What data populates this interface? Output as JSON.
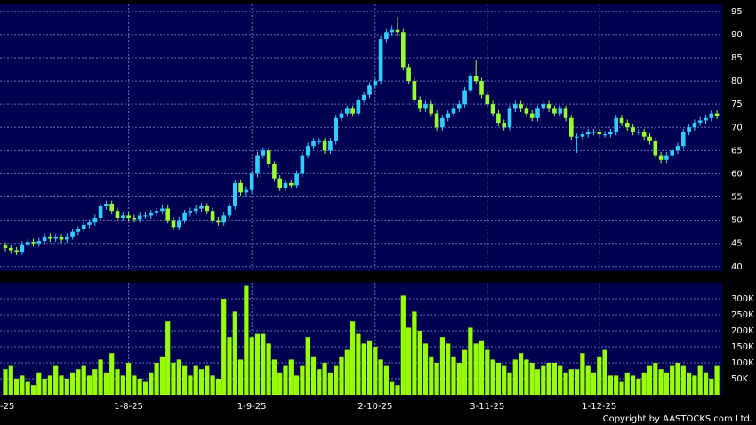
{
  "chart_data": [
    {
      "type": "candlestick",
      "open": [
        44.5,
        44,
        43.5,
        43.2,
        44.8,
        45.3,
        45,
        45.5,
        46.5,
        46,
        46.3,
        45.8,
        46.5,
        47.5,
        48,
        49,
        49.5,
        50.5,
        53,
        53.5,
        52,
        50.5,
        51,
        50.5,
        50.2,
        51,
        51,
        51.5,
        52,
        52.5,
        50,
        48.5,
        50,
        51.5,
        52,
        52.5,
        53,
        52,
        50,
        49.5,
        51,
        53,
        58,
        56,
        56.5,
        60,
        64,
        65,
        62,
        59,
        57,
        58,
        57.5,
        60,
        64,
        66,
        67,
        67,
        65,
        67,
        72,
        73,
        74,
        73,
        76,
        77,
        79,
        80,
        89,
        90.5,
        91,
        90.5,
        83,
        80,
        76,
        74,
        75,
        73,
        70,
        72,
        73,
        74,
        75,
        78,
        81,
        80,
        77,
        75,
        73,
        71,
        70,
        74,
        75,
        74,
        73,
        72,
        74,
        75,
        74,
        73,
        74,
        72,
        68,
        68,
        68.5,
        69,
        69,
        68.5,
        68.5,
        69,
        72,
        71,
        70,
        69,
        69,
        68,
        67,
        64,
        63,
        64,
        65,
        66,
        69,
        70,
        71,
        71.5,
        72,
        73
      ],
      "high": [
        45.2,
        44.7,
        44.2,
        45.5,
        46,
        46,
        46.2,
        47.2,
        47.2,
        47,
        47,
        47.2,
        48.2,
        48.7,
        49.7,
        50.2,
        51.2,
        53.7,
        54.2,
        54.2,
        52.7,
        51.7,
        51.7,
        51.2,
        51.7,
        51.7,
        52.2,
        52.7,
        53.2,
        53.2,
        50.7,
        50.7,
        52.2,
        52.7,
        53.2,
        53.7,
        53.7,
        52.7,
        50.7,
        51.7,
        53.7,
        58.7,
        58.7,
        57.2,
        60.7,
        64.7,
        65.7,
        65.7,
        62.7,
        59.7,
        58.7,
        58.7,
        60.7,
        64.7,
        66.7,
        67.7,
        67.7,
        67.7,
        67.7,
        72.7,
        73.7,
        74.7,
        74.7,
        76.7,
        77.7,
        79.7,
        80.7,
        89.7,
        91.2,
        92,
        93.8,
        91.2,
        83.7,
        80.7,
        76.7,
        75.7,
        75.7,
        73.7,
        72.7,
        73.7,
        74.7,
        75.7,
        78.7,
        81.7,
        84.5,
        80.7,
        77.7,
        75.7,
        73.7,
        71.7,
        74.7,
        75.7,
        75.7,
        74.7,
        73.7,
        74.7,
        75.7,
        75.7,
        74.7,
        74.7,
        74.7,
        72.7,
        68.7,
        69.2,
        69.7,
        69.7,
        69.7,
        69.2,
        69.7,
        72.7,
        72.7,
        71.7,
        70.7,
        69.7,
        69.7,
        68.7,
        67.7,
        64.7,
        64.7,
        65.7,
        66.7,
        69.7,
        70.7,
        71.7,
        72.2,
        72.7,
        73.7,
        73.7
      ],
      "low": [
        43.3,
        42.8,
        42.5,
        42.5,
        44.1,
        44.3,
        44.3,
        44.8,
        45.3,
        45.3,
        45.1,
        45.1,
        45.8,
        46.8,
        47.3,
        48.3,
        48.8,
        49.8,
        52.3,
        51.3,
        49.8,
        49.8,
        49.8,
        49.5,
        49.5,
        50.3,
        50.3,
        50.8,
        51.3,
        49.3,
        47.8,
        47.8,
        49.3,
        50.8,
        51.3,
        51.8,
        51.3,
        49.3,
        48.8,
        48.8,
        50.3,
        52.3,
        55.3,
        55.3,
        55.8,
        59.3,
        63.3,
        61.3,
        58.3,
        56.3,
        56.3,
        56.8,
        56.8,
        59.3,
        63.3,
        65.3,
        66.3,
        64.3,
        64.3,
        66.3,
        71.3,
        72.3,
        72.3,
        72.3,
        75.3,
        76.3,
        78.3,
        79.3,
        88.3,
        89.8,
        89.8,
        82.3,
        79.3,
        75.3,
        73.3,
        73.3,
        72.3,
        69.3,
        69.3,
        71.3,
        72.3,
        73.3,
        74.3,
        77.3,
        79.3,
        76.3,
        74.3,
        72.3,
        70.3,
        69.3,
        69.3,
        73.3,
        73.3,
        72.3,
        71.3,
        71.3,
        73.3,
        73.3,
        72.3,
        72.3,
        71.3,
        67.3,
        64.5,
        67.3,
        67.8,
        68.3,
        67.8,
        67.8,
        67.8,
        68.3,
        70.3,
        69.3,
        68.3,
        68.3,
        67.3,
        66.3,
        63.3,
        62.3,
        62.3,
        63.3,
        64.3,
        65.3,
        68.3,
        69.3,
        70.3,
        70.8,
        71.3,
        71.8
      ],
      "close": [
        44,
        43.5,
        43.2,
        44.8,
        45.3,
        45,
        45.5,
        46.5,
        46,
        46.3,
        45.8,
        46.5,
        47.5,
        48,
        49,
        49.5,
        50.5,
        53,
        53.5,
        52,
        50.5,
        51,
        50.5,
        50.2,
        51,
        51,
        51.5,
        52,
        52.5,
        50,
        48.5,
        50,
        51.5,
        52,
        52.5,
        53,
        52,
        50,
        49.5,
        51,
        53,
        58,
        56,
        56.5,
        60,
        64,
        65,
        62,
        59,
        57,
        58,
        57.5,
        60,
        64,
        66,
        67,
        67,
        65,
        67,
        72,
        73,
        74,
        73,
        76,
        77,
        79,
        80,
        89,
        90.5,
        91,
        90.5,
        83,
        80,
        76,
        74,
        75,
        73,
        70,
        72,
        73,
        74,
        75,
        78,
        81,
        80,
        77,
        75,
        73,
        71,
        70,
        74,
        75,
        74,
        73,
        72,
        74,
        75,
        74,
        73,
        74,
        72,
        68,
        68,
        68.5,
        69,
        69,
        68.5,
        68.5,
        69,
        72,
        71,
        70,
        69,
        69,
        68,
        67,
        64,
        63,
        64,
        65,
        66,
        69,
        70,
        71,
        71.5,
        72,
        73,
        72.5
      ],
      "up_color": "#33ccff",
      "down_color": "#99ff33",
      "ylim": [
        39,
        96.5
      ],
      "yticks": [
        40,
        45,
        50,
        55,
        60,
        65,
        70,
        75,
        80,
        85,
        90,
        95
      ],
      "grid": true
    },
    {
      "type": "bar",
      "categories": [
        "-25",
        null,
        null,
        null,
        null,
        null,
        null,
        null,
        null,
        null,
        null,
        null,
        null,
        null,
        null,
        null,
        null,
        null,
        null,
        null,
        null,
        null,
        "1-8-25",
        null,
        null,
        null,
        null,
        null,
        null,
        null,
        null,
        null,
        null,
        null,
        null,
        null,
        null,
        null,
        null,
        null,
        null,
        null,
        null,
        null,
        "1-9-25",
        null,
        null,
        null,
        null,
        null,
        null,
        null,
        null,
        null,
        null,
        null,
        null,
        null,
        null,
        null,
        null,
        null,
        null,
        null,
        null,
        null,
        "2-10-25",
        null,
        null,
        null,
        null,
        null,
        null,
        null,
        null,
        null,
        null,
        null,
        null,
        null,
        null,
        null,
        null,
        null,
        null,
        null,
        "3-11-25",
        null,
        null,
        null,
        null,
        null,
        null,
        null,
        null,
        null,
        null,
        null,
        null,
        null,
        null,
        null,
        null,
        null,
        null,
        null,
        "1-12-25",
        null,
        null,
        null,
        null,
        null,
        null,
        null,
        null,
        null,
        null,
        null,
        null,
        null,
        null,
        null,
        null,
        null,
        null,
        null,
        null,
        null
      ],
      "values": [
        80000,
        90000,
        50000,
        60000,
        40000,
        30000,
        70000,
        50000,
        60000,
        90000,
        60000,
        50000,
        70000,
        80000,
        90000,
        60000,
        80000,
        110000,
        70000,
        130000,
        80000,
        60000,
        100000,
        60000,
        50000,
        40000,
        70000,
        100000,
        120000,
        230000,
        100000,
        110000,
        90000,
        60000,
        90000,
        80000,
        90000,
        60000,
        50000,
        300000,
        180000,
        260000,
        110000,
        340000,
        180000,
        190000,
        190000,
        160000,
        110000,
        70000,
        90000,
        110000,
        60000,
        90000,
        180000,
        120000,
        80000,
        100000,
        70000,
        90000,
        120000,
        140000,
        230000,
        190000,
        160000,
        170000,
        150000,
        110000,
        90000,
        40000,
        30000,
        310000,
        210000,
        260000,
        200000,
        160000,
        120000,
        100000,
        180000,
        160000,
        120000,
        100000,
        140000,
        210000,
        160000,
        170000,
        140000,
        110000,
        100000,
        90000,
        70000,
        110000,
        130000,
        110000,
        100000,
        80000,
        90000,
        100000,
        100000,
        90000,
        70000,
        80000,
        80000,
        130000,
        90000,
        70000,
        120000,
        140000,
        60000,
        60000,
        40000,
        70000,
        60000,
        50000,
        70000,
        90000,
        100000,
        80000,
        70000,
        90000,
        100000,
        90000,
        70000,
        60000,
        90000,
        70000,
        50000,
        90000
      ],
      "color": "#99ff00",
      "ylim": [
        0,
        350000
      ],
      "yticks": [
        {
          "value": 50000,
          "label": "50K"
        },
        {
          "value": 100000,
          "label": "100K"
        },
        {
          "value": 150000,
          "label": "150K"
        },
        {
          "value": 200000,
          "label": "200K"
        },
        {
          "value": 250000,
          "label": "250K"
        },
        {
          "value": 300000,
          "label": "300K"
        }
      ],
      "grid": true
    }
  ],
  "copyright": "Copyright by AASTOCKS.com Ltd."
}
